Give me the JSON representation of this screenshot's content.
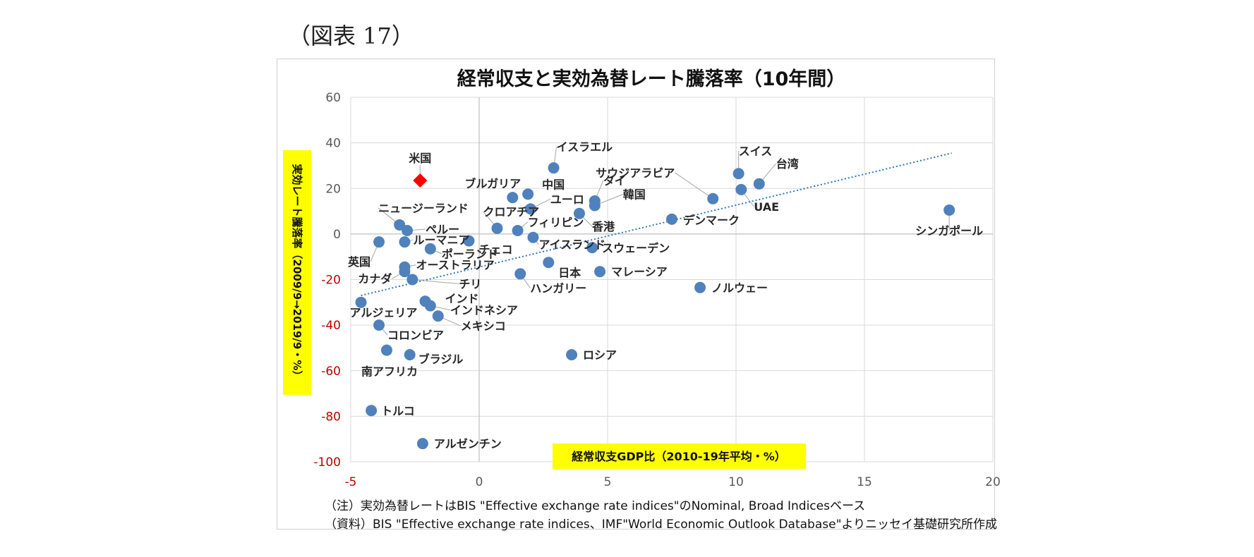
{
  "figure_label": "（図表 17）",
  "notes": [
    "（注）実効為替レートはBIS \"Effective exchange rate indices\"のNominal, Broad Indicesベース",
    "（資料）BIS \"Effective exchange rate indices、IMF\"World Economic Outlook Database\"よりニッセイ基礎研究所作成"
  ],
  "colors": {
    "point": "#4f81bd",
    "highlight": "#ff0000",
    "negative_tick": "#c00000",
    "label_box": "#ffff00",
    "trend": "#2e75b6"
  },
  "chart_data": {
    "type": "scatter",
    "title": "経常収支と実効為替レート騰落率（10年間）",
    "xlabel": "経常収支GDP比（2010-19年平均・%）",
    "ylabel": "実効レート騰落率（2009/9→2019/9・%）",
    "xlim": [
      -5,
      20
    ],
    "ylim": [
      -100,
      60
    ],
    "xticks": [
      -5,
      0,
      5,
      10,
      15,
      20
    ],
    "yticks": [
      -100,
      -80,
      -60,
      -40,
      -20,
      0,
      20,
      40,
      60
    ],
    "grid": true,
    "trendline": {
      "style": "dotted",
      "from": [
        -4.6,
        -27
      ],
      "to": [
        18.4,
        35.5
      ]
    },
    "highlight": {
      "name": "米国",
      "x": -2.3,
      "y": 23.5,
      "marker": "diamond"
    },
    "points": [
      {
        "name": "シンガポール",
        "x": 18.3,
        "y": 10.5
      },
      {
        "name": "スイス",
        "x": 10.1,
        "y": 26.5
      },
      {
        "name": "台湾",
        "x": 10.9,
        "y": 22
      },
      {
        "name": "UAE",
        "x": 10.2,
        "y": 19.5
      },
      {
        "name": "サウジアラビア",
        "x": 9.1,
        "y": 15.5
      },
      {
        "name": "デンマーク",
        "x": 7.5,
        "y": 6.5
      },
      {
        "name": "ノルウェー",
        "x": 8.6,
        "y": -23.5
      },
      {
        "name": "イスラエル",
        "x": 2.9,
        "y": 29
      },
      {
        "name": "タイ",
        "x": 4.5,
        "y": 14.5
      },
      {
        "name": "韓国",
        "x": 4.5,
        "y": 12.5
      },
      {
        "name": "香港",
        "x": 3.9,
        "y": 9
      },
      {
        "name": "スウェーデン",
        "x": 4.4,
        "y": -6
      },
      {
        "name": "マレーシア",
        "x": 4.7,
        "y": -16.5
      },
      {
        "name": "日本",
        "x": 2.7,
        "y": -12.5
      },
      {
        "name": "ロシア",
        "x": 3.6,
        "y": -53
      },
      {
        "name": "中国",
        "x": 1.9,
        "y": 17.5
      },
      {
        "name": "ブルガリア",
        "x": 1.3,
        "y": 16
      },
      {
        "name": "ユーロ",
        "x": 2,
        "y": 11
      },
      {
        "name": "フィリピン",
        "x": 1.5,
        "y": 1.5
      },
      {
        "name": "アイスランド",
        "x": 2.1,
        "y": -1.5
      },
      {
        "name": "クロアチア",
        "x": 0.7,
        "y": 2.5
      },
      {
        "name": "チェコ",
        "x": -0.4,
        "y": -3
      },
      {
        "name": "ハンガリー",
        "x": 1.6,
        "y": -17.5
      },
      {
        "name": "ニュージーランド",
        "x": -3.1,
        "y": 4
      },
      {
        "name": "ペルー",
        "x": -2.8,
        "y": 1.5
      },
      {
        "name": "ルーマニア",
        "x": -2.9,
        "y": -3.5
      },
      {
        "name": "英国",
        "x": -3.9,
        "y": -3.5
      },
      {
        "name": "ポーランド",
        "x": -1.9,
        "y": -6.5
      },
      {
        "name": "オーストラリア",
        "x": -2.9,
        "y": -14.5
      },
      {
        "name": "カナダ",
        "x": -2.9,
        "y": -16.5
      },
      {
        "name": "チリ",
        "x": -2.6,
        "y": -20
      },
      {
        "name": "インド",
        "x": -2.1,
        "y": -29.5
      },
      {
        "name": "インドネシア",
        "x": -1.9,
        "y": -31.5
      },
      {
        "name": "メキシコ",
        "x": -1.6,
        "y": -36
      },
      {
        "name": "アルジェリア",
        "x": -4.6,
        "y": -30
      },
      {
        "name": "コロンビア",
        "x": -3.9,
        "y": -40
      },
      {
        "name": "南アフリカ",
        "x": -3.6,
        "y": -51
      },
      {
        "name": "ブラジル",
        "x": -2.7,
        "y": -53
      },
      {
        "name": "トルコ",
        "x": -4.2,
        "y": -77.5
      },
      {
        "name": "アルゼンチン",
        "x": -2.2,
        "y": -92
      }
    ]
  }
}
